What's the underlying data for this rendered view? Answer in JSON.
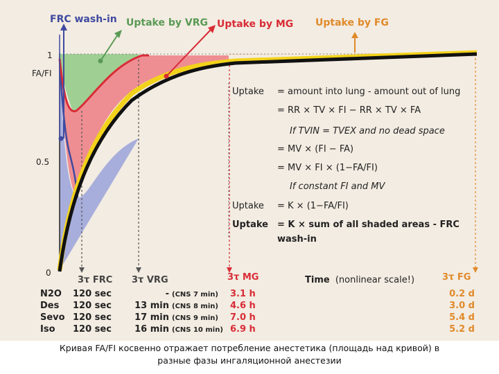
{
  "header_labels": [
    {
      "text": "FRC wash-in",
      "color": "#3f4aa0"
    },
    {
      "text": "Uptake by VRG",
      "color": "#5a9a56"
    },
    {
      "text": "Uptake by MG",
      "color": "#d82c36"
    },
    {
      "text": "Uptake by FG",
      "color": "#e08a2a"
    }
  ],
  "y_axis": {
    "label": "FA/FI",
    "ticks": [
      "1",
      "0.5",
      "0"
    ]
  },
  "x_axis": {
    "title_bold": "Time",
    "title_rest": "(nonlinear scale!)"
  },
  "time_markers": [
    {
      "label": "3τ FRC",
      "color": "#444444"
    },
    {
      "label": "3τ VRG",
      "color": "#444444"
    },
    {
      "label": "3τ MG",
      "color": "#d82c36"
    },
    {
      "label": "3τ FG",
      "color": "#e08a2a"
    }
  ],
  "equations": [
    {
      "lhs": "Uptake",
      "rhs": "= amount into lung - amount out of lung",
      "style": "normal"
    },
    {
      "lhs": "",
      "rhs": "= RR × TV × FI − RR × TV × FA",
      "style": "normal"
    },
    {
      "lhs": "",
      "rhs": "If TVIN = TVEX and no dead space",
      "style": "italic"
    },
    {
      "lhs": "",
      "rhs": "= MV × (FI − FA)",
      "style": "normal"
    },
    {
      "lhs": "",
      "rhs": "= MV × FI × (1−FA/FI)",
      "style": "normal"
    },
    {
      "lhs": "",
      "rhs": "If constant FI and MV",
      "style": "italic"
    },
    {
      "lhs": "Uptake",
      "rhs": "= K × (1−FA/FI)",
      "style": "normal"
    },
    {
      "lhs": "Uptake",
      "rhs": "= K × sum of all shaded areas - FRC",
      "style": "bold"
    },
    {
      "lhs": "",
      "rhs": "wash-in",
      "style": "bold"
    }
  ],
  "table": {
    "rows": [
      {
        "agent": "N2O",
        "frc": "120 sec",
        "vrg": "-",
        "vrg_cns": "(CNS 7 min)",
        "mg": "3.1 h",
        "fg": "0.2 d"
      },
      {
        "agent": "Des",
        "frc": "120 sec",
        "vrg": "13 min",
        "vrg_cns": "(CNS 8 min)",
        "mg": "4.6 h",
        "fg": "3.0 d"
      },
      {
        "agent": "Sevo",
        "frc": "120 sec",
        "vrg": "17 min",
        "vrg_cns": "(CNS 9 min)",
        "mg": "7.0 h",
        "fg": "5.4 d"
      },
      {
        "agent": "Iso",
        "frc": "120 sec",
        "vrg": "16 min",
        "vrg_cns": "(CNS 10 min)",
        "mg": "6.9 h",
        "fg": "5.2 d"
      }
    ]
  },
  "caption": {
    "line1": "Кривая FA/FI косвенно отражает потребление анестетика (площадь над кривой) в",
    "line2": "разные фазы ингаляционной анестезии"
  },
  "colors": {
    "paper": "#f3ece2",
    "frc_fill": "#a8aedb",
    "vrg_fill": "#9fcf93",
    "mg_fill": "#ee8e92",
    "fg_fill": "#f7c9a0",
    "curve_black": "#111111",
    "curve_yellow": "#f2d21b",
    "curve_red": "#d82c36",
    "curve_blue": "#3f4aa0",
    "text_dark": "#222222",
    "red_text": "#d82c36",
    "orange_text": "#e08a2a"
  }
}
